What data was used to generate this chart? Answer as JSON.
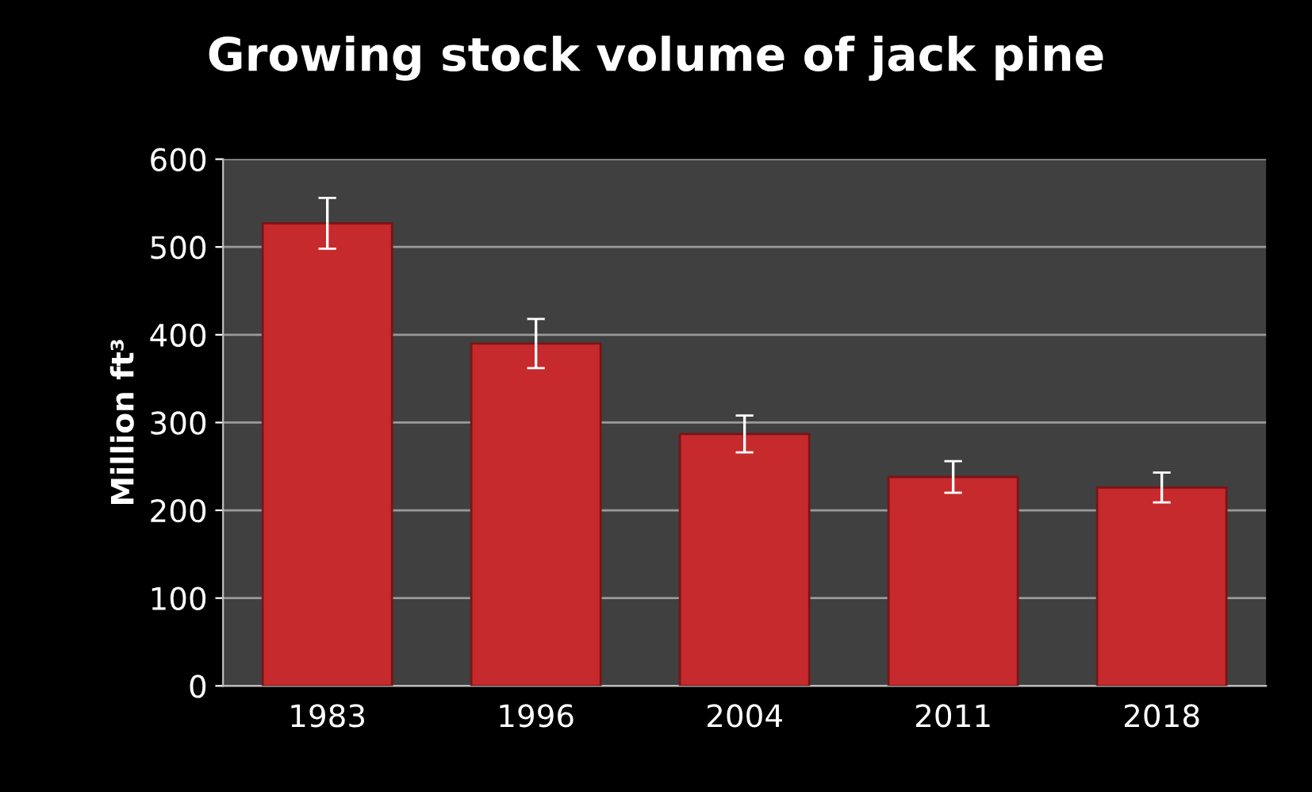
{
  "chart_data": {
    "type": "bar",
    "title": "Growing stock volume of jack pine",
    "ylabel": "Million ft³",
    "categories": [
      "1983",
      "1996",
      "2004",
      "2011",
      "2018"
    ],
    "values": [
      527,
      390,
      287,
      238,
      226
    ],
    "errors": [
      29,
      28,
      21,
      18,
      17
    ],
    "color": "#c62a2c",
    "ylim": [
      0,
      600
    ],
    "yticks": [
      0,
      100,
      200,
      300,
      400,
      500,
      600
    ],
    "grid": "y"
  }
}
